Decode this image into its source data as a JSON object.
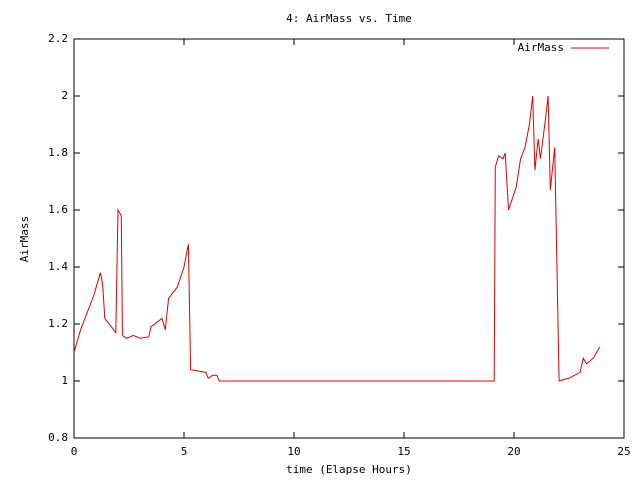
{
  "chart_data": {
    "type": "line",
    "title": "4: AirMass vs. Time",
    "x_label": "time (Elapse Hours)",
    "y_label": "AirMass",
    "xlim": [
      0,
      25
    ],
    "xticks": [
      0,
      5,
      10,
      15,
      20,
      25
    ],
    "ylim": [
      0.8,
      2.2
    ],
    "yticks": [
      0.8,
      1,
      1.2,
      1.4,
      1.6,
      1.8,
      2,
      2.2
    ],
    "legend_position": "top-right",
    "series": [
      {
        "name": "AirMass",
        "color": "#e00000",
        "x": [
          0,
          0.3,
          0.6,
          0.9,
          1.2,
          1.3,
          1.4,
          1.9,
          2.0,
          2.15,
          2.2,
          2.4,
          2.7,
          3.0,
          3.4,
          3.5,
          4.0,
          4.15,
          4.3,
          4.7,
          5.0,
          5.2,
          5.3,
          6.0,
          6.1,
          6.3,
          6.5,
          6.6,
          10,
          15,
          19.1,
          19.15,
          19.3,
          19.5,
          19.6,
          19.75,
          20.1,
          20.3,
          20.5,
          20.7,
          20.85,
          20.95,
          21.1,
          21.2,
          21.4,
          21.55,
          21.65,
          21.85,
          22.05,
          22.5,
          23.0,
          23.15,
          23.3,
          23.6,
          23.9
        ],
        "values": [
          1.1,
          1.18,
          1.24,
          1.3,
          1.38,
          1.34,
          1.22,
          1.17,
          1.6,
          1.58,
          1.16,
          1.15,
          1.16,
          1.15,
          1.155,
          1.19,
          1.22,
          1.18,
          1.29,
          1.33,
          1.4,
          1.48,
          1.04,
          1.03,
          1.01,
          1.02,
          1.02,
          1.0,
          1.0,
          1.0,
          1.0,
          1.75,
          1.79,
          1.78,
          1.8,
          1.6,
          1.68,
          1.78,
          1.82,
          1.9,
          2.0,
          1.74,
          1.85,
          1.78,
          1.9,
          2.0,
          1.67,
          1.82,
          1.0,
          1.01,
          1.03,
          1.08,
          1.06,
          1.08,
          1.12
        ]
      }
    ]
  }
}
